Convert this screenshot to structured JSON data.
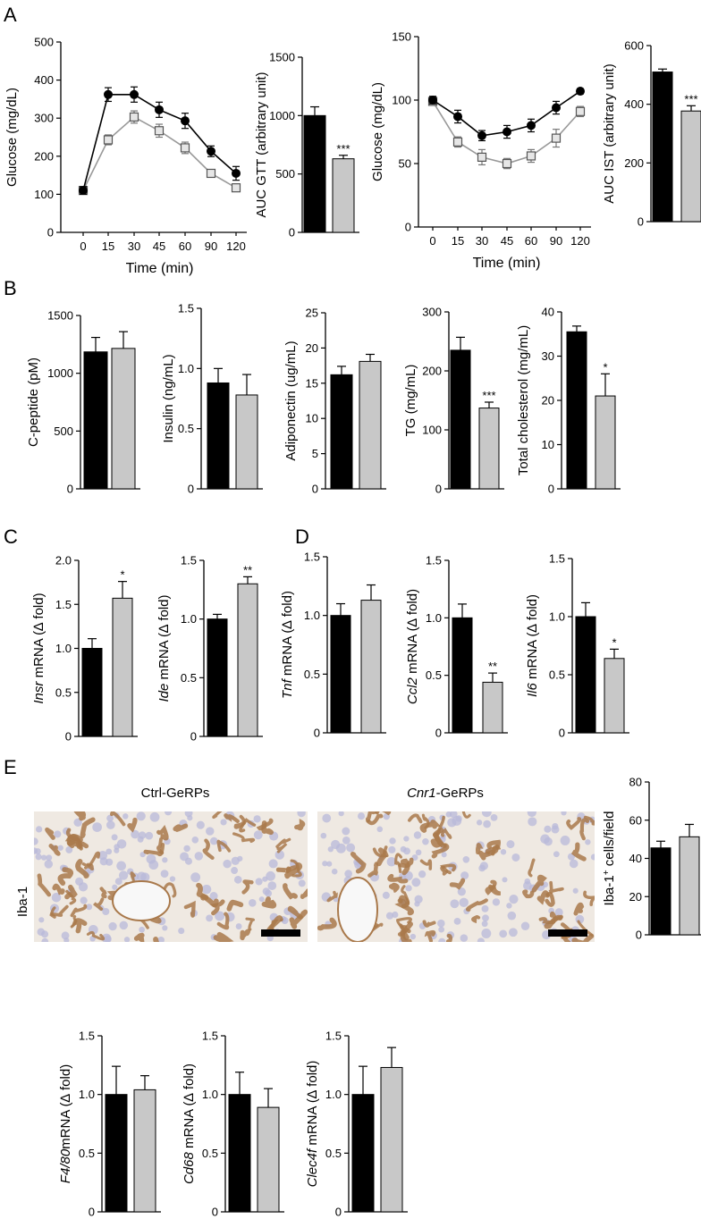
{
  "panel_labels": [
    "A",
    "B",
    "C",
    "D",
    "E"
  ],
  "colors": {
    "ctrl": "#000000",
    "cnr1": "#c8c8c8",
    "cnr1_point": "#e6e6e6",
    "cnr1_line": "#999999",
    "stain": "#a9794b",
    "nuclei": "#b8b8da",
    "tissue": "#efe9e2"
  },
  "images": {
    "ctrl_title": "Ctrl-GeRPs",
    "cnr1_title_italic": "Cnr1",
    "cnr1_title_rest": "-GeRPs",
    "stain_label": "Iba-1"
  },
  "chart_data": [
    {
      "id": "gtt",
      "type": "line",
      "ylabel": "Glucose (mg/dL)",
      "xlabel": "Time (min)",
      "ylim": [
        0,
        500
      ],
      "yticks": [
        0,
        100,
        200,
        300,
        400,
        500
      ],
      "categories": [
        "0",
        "15",
        "30",
        "45",
        "60",
        "90",
        "120"
      ],
      "series": [
        {
          "values": [
            110,
            362,
            362,
            322,
            293,
            213,
            155
          ],
          "err": [
            10,
            18,
            20,
            20,
            20,
            14,
            18
          ]
        },
        {
          "values": [
            110,
            243,
            303,
            267,
            222,
            155,
            117
          ],
          "err": [
            10,
            13,
            16,
            17,
            15,
            10,
            9
          ]
        }
      ]
    },
    {
      "id": "auc_gtt",
      "type": "bar",
      "ylabel": "AUC GTT (arbitrary unit)",
      "ylim": [
        0,
        1500
      ],
      "yticks": [
        0,
        500,
        1000,
        1500
      ],
      "values": [
        1000,
        630
      ],
      "err": [
        75,
        30
      ],
      "stars": [
        "",
        "***"
      ]
    },
    {
      "id": "ist",
      "type": "line",
      "ylabel": "Glucose (mg/dL)",
      "xlabel": "Time (min)",
      "ylim": [
        0,
        150
      ],
      "yticks": [
        0,
        50,
        100,
        150
      ],
      "categories": [
        "0",
        "15",
        "30",
        "45",
        "60",
        "90",
        "120"
      ],
      "series": [
        {
          "values": [
            100,
            87,
            72,
            75,
            80,
            94,
            107
          ],
          "err": [
            3,
            5,
            4,
            5,
            5,
            5,
            2
          ]
        },
        {
          "values": [
            99,
            67,
            55,
            50,
            56,
            70,
            91
          ],
          "err": [
            3,
            4,
            6,
            4,
            5,
            7,
            4
          ]
        }
      ]
    },
    {
      "id": "auc_ist",
      "type": "bar",
      "ylabel": "AUC IST (arbitrary unit)",
      "ylim": [
        0,
        600
      ],
      "yticks": [
        0,
        200,
        400,
        600
      ],
      "values": [
        510,
        377
      ],
      "err": [
        10,
        18
      ],
      "stars": [
        "",
        "***"
      ]
    },
    {
      "id": "cpep",
      "type": "bar",
      "ylabel": "C-peptide (pM)",
      "ylim": [
        0,
        1500
      ],
      "yticks": [
        0,
        500,
        1000,
        1500
      ],
      "values": [
        1185,
        1215
      ],
      "err": [
        125,
        145
      ],
      "stars": [
        "",
        ""
      ]
    },
    {
      "id": "insulin",
      "type": "bar",
      "ylabel": "Insulin (ng/mL)",
      "ylim": [
        0,
        1.5
      ],
      "yticks": [
        "0",
        "0.5",
        "1.0",
        "1.5"
      ],
      "values": [
        0.88,
        0.78
      ],
      "err": [
        0.12,
        0.17
      ],
      "stars": [
        "",
        ""
      ]
    },
    {
      "id": "adipo",
      "type": "bar",
      "ylabel": "Adiponectin (ug/mL)",
      "ylim": [
        0,
        25
      ],
      "yticks": [
        0,
        5,
        10,
        15,
        20,
        25
      ],
      "values": [
        16.2,
        18.1
      ],
      "err": [
        1.2,
        1.0
      ],
      "stars": [
        "",
        ""
      ]
    },
    {
      "id": "tg",
      "type": "bar",
      "ylabel": "TG (mg/mL)",
      "ylim": [
        0,
        300
      ],
      "yticks": [
        0,
        100,
        200,
        300
      ],
      "values": [
        235,
        137
      ],
      "err": [
        22,
        10
      ],
      "stars": [
        "",
        "***"
      ]
    },
    {
      "id": "chol",
      "type": "bar",
      "ylabel": "Total cholesterol (mg/mL)",
      "ylim": [
        0,
        40
      ],
      "yticks": [
        0,
        10,
        20,
        30,
        40
      ],
      "values": [
        35.5,
        21
      ],
      "err": [
        1.3,
        5
      ],
      "stars": [
        "",
        "*"
      ]
    },
    {
      "id": "insr",
      "type": "bar",
      "ylabel_italic": "Insr",
      "ylabel_rest": " mRNA (∆ fold)",
      "ylim": [
        0,
        2
      ],
      "yticks": [
        "0",
        "0.5",
        "1.0",
        "1.5",
        "2.0"
      ],
      "values": [
        1.0,
        1.57
      ],
      "err": [
        0.11,
        0.19
      ],
      "stars": [
        "",
        "*"
      ]
    },
    {
      "id": "ide",
      "type": "bar",
      "ylabel_italic": "Ide",
      "ylabel_rest": " mRNA (∆ fold)",
      "ylim": [
        0,
        1.5
      ],
      "yticks": [
        "0",
        "0.5",
        "1.0",
        "1.5"
      ],
      "values": [
        1.0,
        1.3
      ],
      "err": [
        0.04,
        0.06
      ],
      "stars": [
        "",
        "**"
      ]
    },
    {
      "id": "tnf",
      "type": "bar",
      "ylabel_italic": "Tnf",
      "ylabel_rest": " mRNA (∆ fold)",
      "ylim": [
        0,
        1.5
      ],
      "yticks": [
        "0",
        "0.5",
        "1.0",
        "1.5"
      ],
      "values": [
        1.0,
        1.13
      ],
      "err": [
        0.1,
        0.13
      ],
      "stars": [
        "",
        ""
      ]
    },
    {
      "id": "ccl2",
      "type": "bar",
      "ylabel_italic": "Ccl2",
      "ylabel_rest": " mRNA (∆ fold)",
      "ylim": [
        0,
        1.5
      ],
      "yticks": [
        "0",
        "0.5",
        "1.0",
        "1.5"
      ],
      "values": [
        1.0,
        0.44
      ],
      "err": [
        0.12,
        0.08
      ],
      "stars": [
        "",
        "**"
      ]
    },
    {
      "id": "il6",
      "type": "bar",
      "ylabel_italic": "Il6",
      "ylabel_rest": " mRNA (∆ fold)",
      "ylim": [
        0,
        1.5
      ],
      "yticks": [
        "0",
        "0.5",
        "1.0",
        "1.5"
      ],
      "values": [
        1.0,
        0.64
      ],
      "err": [
        0.12,
        0.08
      ],
      "stars": [
        "",
        "*"
      ]
    },
    {
      "id": "iba1",
      "type": "bar",
      "ylabel_html": "Iba-1<sup>+</sup> cells/field",
      "ylabel_text": "Iba-1+ cells/field",
      "ylim": [
        0,
        80
      ],
      "yticks": [
        0,
        20,
        40,
        60,
        80
      ],
      "values": [
        45.5,
        51.3
      ],
      "err": [
        3.5,
        6.5
      ],
      "stars": [
        "",
        ""
      ]
    },
    {
      "id": "f480",
      "type": "bar",
      "ylabel_italic": "F4/80",
      "ylabel_rest": "mRNA (∆ fold)",
      "ylim": [
        0,
        1.5
      ],
      "yticks": [
        "0",
        "0.5",
        "1.0",
        "1.5"
      ],
      "values": [
        1.0,
        1.04
      ],
      "err": [
        0.24,
        0.12
      ],
      "stars": [
        "",
        ""
      ]
    },
    {
      "id": "cd68",
      "type": "bar",
      "ylabel_italic": "Cd68",
      "ylabel_rest": " mRNA (∆ fold)",
      "ylim": [
        0,
        1.5
      ],
      "yticks": [
        "0",
        "0.5",
        "1.0",
        "1.5"
      ],
      "values": [
        1.0,
        0.89
      ],
      "err": [
        0.19,
        0.16
      ],
      "stars": [
        "",
        ""
      ]
    },
    {
      "id": "clec4f",
      "type": "bar",
      "ylabel_italic": "Clec4f",
      "ylabel_rest": " mRNA (∆ fold)",
      "ylim": [
        0,
        1.5
      ],
      "yticks": [
        "0",
        "0.5",
        "1.0",
        "1.5"
      ],
      "values": [
        1.0,
        1.23
      ],
      "err": [
        0.24,
        0.17
      ],
      "stars": [
        "",
        ""
      ]
    }
  ]
}
